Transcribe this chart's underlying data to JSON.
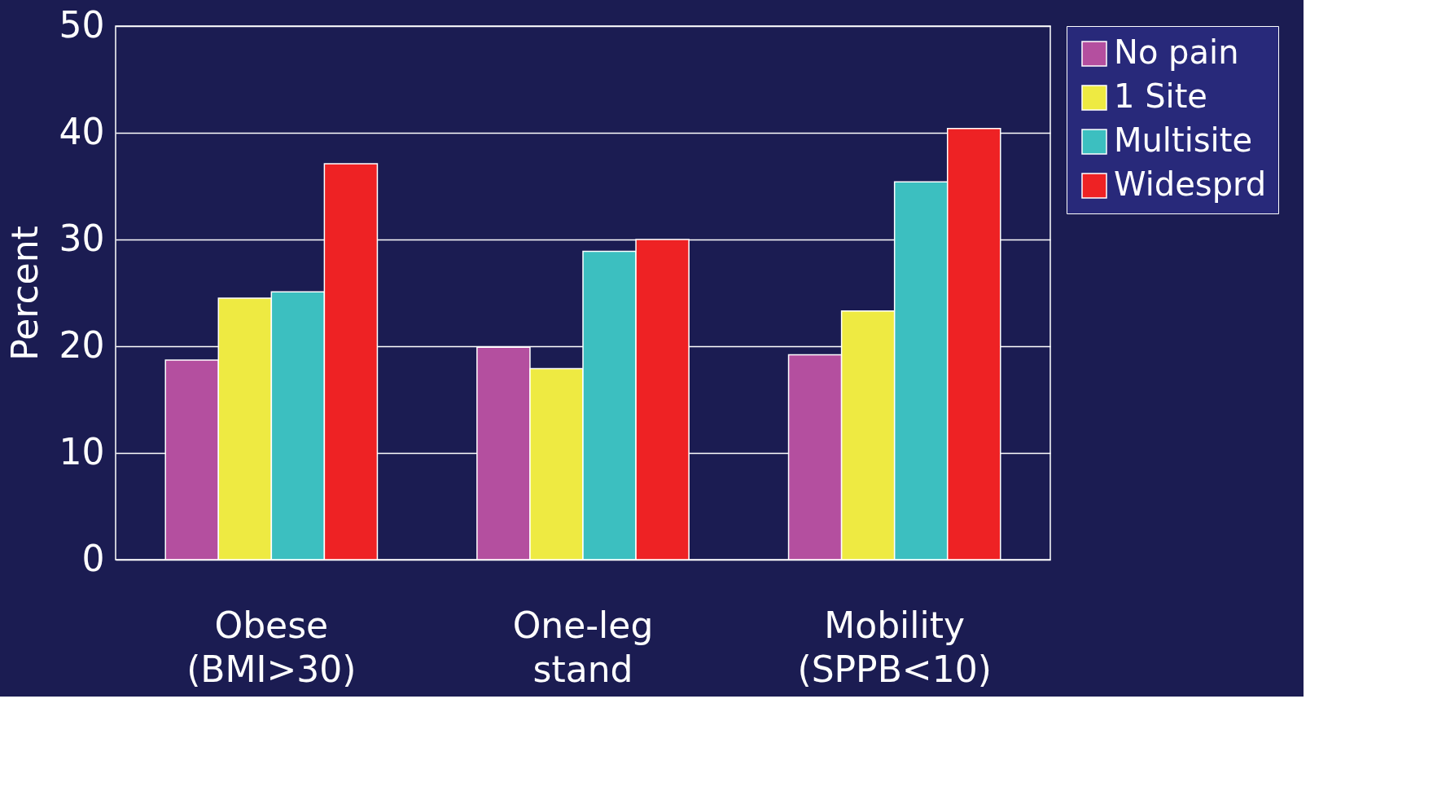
{
  "chart_data": {
    "type": "bar",
    "ylabel": "Percent",
    "categories": [
      "Obese\n(BMI>30)",
      "One-leg\nstand",
      "Mobility\n(SPPB<10)"
    ],
    "series": [
      {
        "name": "No pain",
        "color": "#b44f9f",
        "values": [
          18.7,
          19.9,
          19.2
        ]
      },
      {
        "name": "1 Site",
        "color": "#eeea42",
        "values": [
          24.5,
          17.9,
          23.3
        ]
      },
      {
        "name": "Multisite",
        "color": "#3cbfc0",
        "values": [
          25.1,
          28.9,
          35.4
        ]
      },
      {
        "name": "Widesprd",
        "color": "#ee2224",
        "values": [
          37.1,
          30.0,
          40.4
        ]
      }
    ],
    "ylim": [
      0,
      50
    ],
    "yticks": [
      0,
      10,
      20,
      30,
      40,
      50
    ],
    "grid": "y",
    "legend": "right"
  }
}
